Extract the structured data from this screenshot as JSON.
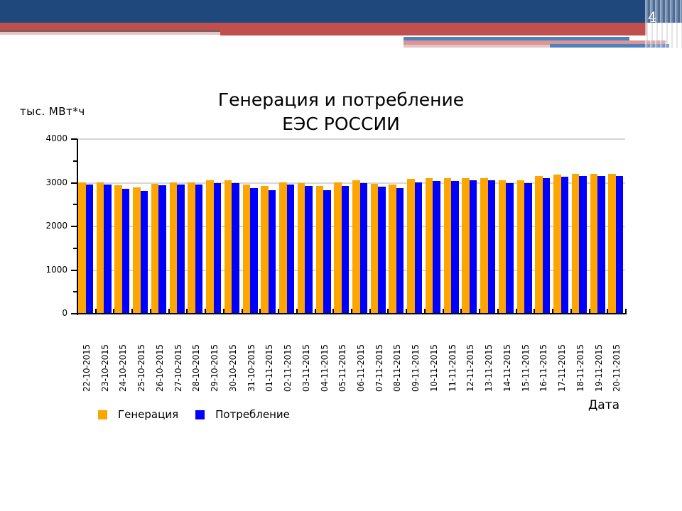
{
  "slide": {
    "page_number": "4",
    "colors": {
      "header_blue": "#1f497d",
      "header_red": "#c0504d",
      "accent_blue": "#4f81bd"
    }
  },
  "chart": {
    "title_line1": "Генерация и потребление",
    "title_line2": "ЕЭС РОССИИ",
    "y_unit": "тыс. МВт*ч",
    "x_title": "Дата",
    "y_ticks": [
      "4000",
      "3000",
      "2000",
      "1000",
      "0"
    ],
    "legend": [
      {
        "label": "Генерация",
        "color": "#ffa500"
      },
      {
        "label": "Потребление",
        "color": "#0000ff"
      }
    ]
  },
  "chart_data": {
    "type": "bar",
    "title": "Генерация и потребление ЕЭС РОССИИ",
    "xlabel": "Дата",
    "ylabel": "тыс. МВт*ч",
    "ylim": [
      0,
      4000
    ],
    "yticks": [
      0,
      1000,
      2000,
      3000,
      4000
    ],
    "grid": true,
    "legend_position": "bottom-left",
    "categories": [
      "22-10-2015",
      "23-10-2015",
      "24-10-2015",
      "25-10-2015",
      "26-10-2015",
      "27-10-2015",
      "28-10-2015",
      "29-10-2015",
      "30-10-2015",
      "31-10-2015",
      "01-11-2015",
      "02-11-2015",
      "03-11-2015",
      "04-11-2015",
      "05-11-2015",
      "06-11-2015",
      "07-11-2015",
      "08-11-2015",
      "09-11-2015",
      "10-11-2015",
      "11-11-2015",
      "12-11-2015",
      "13-11-2015",
      "14-11-2015",
      "15-11-2015",
      "16-11-2015",
      "17-11-2015",
      "18-11-2015",
      "19-11-2015",
      "20-11-2015"
    ],
    "series": [
      {
        "name": "Генерация",
        "color": "#ffa500",
        "values": [
          3010,
          3010,
          2940,
          2890,
          2980,
          3010,
          3010,
          3050,
          3050,
          2960,
          2920,
          3010,
          2990,
          2920,
          3010,
          3050,
          2980,
          2960,
          3090,
          3110,
          3110,
          3110,
          3110,
          3050,
          3050,
          3160,
          3190,
          3210,
          3210,
          3210
        ]
      },
      {
        "name": "Потребление",
        "color": "#0000ff",
        "values": [
          2960,
          2960,
          2870,
          2820,
          2940,
          2960,
          2960,
          2990,
          2990,
          2880,
          2830,
          2960,
          2930,
          2830,
          2930,
          2990,
          2910,
          2880,
          3010,
          3040,
          3040,
          3060,
          3060,
          2990,
          2990,
          3110,
          3140,
          3160,
          3160,
          3160
        ]
      }
    ]
  }
}
